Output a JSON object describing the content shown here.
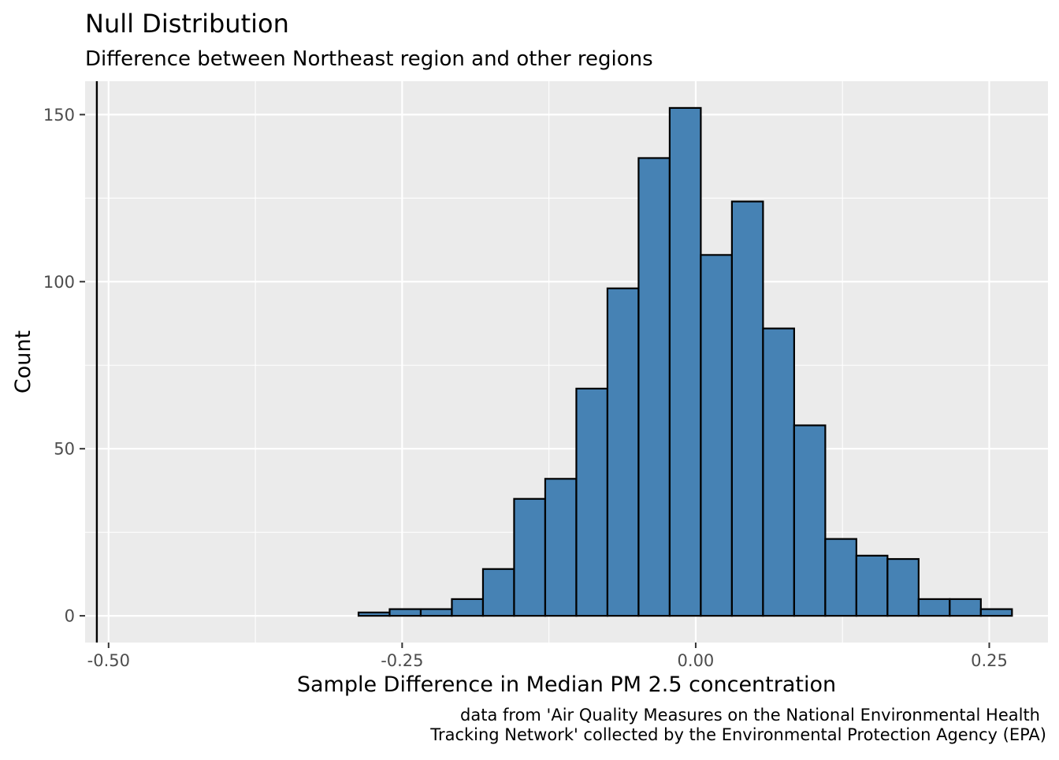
{
  "chart_data": {
    "type": "bar",
    "title": "Null Distribution",
    "subtitle": "Difference between Northeast region and other regions",
    "xlabel": "Sample Difference in Median PM 2.5 concentration",
    "ylabel": "Count",
    "caption_lines": [
      "data from 'Air Quality Measures on the National Environmental Health",
      "Tracking Network' collected by the Environmental Protection Agency (EPA)"
    ],
    "xlim": [
      -0.52,
      0.3
    ],
    "ylim": [
      -8,
      160
    ],
    "x_ticks": [
      -0.5,
      -0.25,
      0.0,
      0.25
    ],
    "x_tick_labels": [
      "-0.50",
      "-0.25",
      "0.00",
      "0.25"
    ],
    "y_ticks": [
      0,
      50,
      100,
      150
    ],
    "y_tick_labels": [
      "0",
      "50",
      "100",
      "150"
    ],
    "bin_width": 0.0265,
    "bin_centers": [
      -0.5124,
      -0.4859,
      -0.4594,
      -0.4329,
      -0.4064,
      -0.3799,
      -0.3534,
      -0.3269,
      -0.3004,
      -0.2739,
      -0.2474,
      -0.2209,
      -0.1944,
      -0.1679,
      -0.1414,
      -0.1149,
      -0.0884,
      -0.0619,
      -0.0354,
      -0.0089,
      0.0176,
      0.0441,
      0.0706,
      0.0971,
      0.1236,
      0.1501,
      0.1766,
      0.2031,
      0.2296,
      0.2561
    ],
    "counts": [
      0,
      0,
      0,
      0,
      0,
      0,
      0,
      0,
      0,
      1,
      2,
      2,
      5,
      14,
      35,
      41,
      68,
      98,
      137,
      152,
      108,
      124,
      86,
      57,
      23,
      18,
      17,
      5,
      5,
      2
    ],
    "observed_statistic": -0.51,
    "grid": true,
    "colors": {
      "panel_background": "#EBEBEB",
      "grid": "#FFFFFF",
      "bar_fill": "#4682B4",
      "bar_outline": "#000000",
      "observed_line": "#000000",
      "text": "#000000",
      "tick_text": "#4D4D4D",
      "tick_mark": "#333333"
    }
  }
}
